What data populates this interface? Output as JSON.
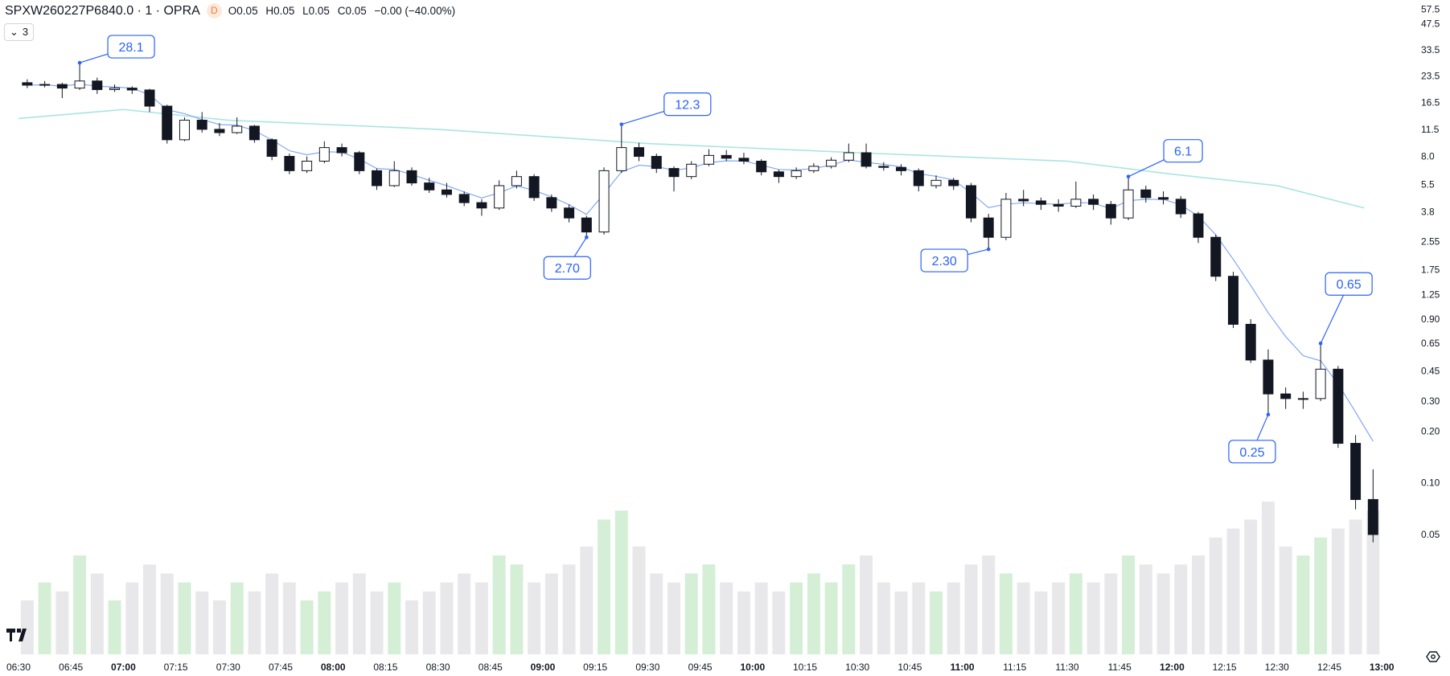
{
  "header": {
    "symbol": "SPXW260227P6840.0 · 1 · OPRA",
    "badge": "D",
    "open": "O0.05",
    "high": "H0.05",
    "low": "L0.05",
    "close": "C0.05",
    "change": "−0.00 (−40.00%)",
    "indicators_toggle": "3"
  },
  "colors": {
    "candle": "#131722",
    "ma_fast": "#7aa0f7",
    "ma_fast_above": "#f28b82",
    "ma_slow": "#a8e6df",
    "vol_up": "#d4efd6",
    "vol_down": "#e8e8ea",
    "annotation": "#2962ff",
    "axis_text": "#131722"
  },
  "chart_data": {
    "type": "candlestick",
    "interval_minutes": 5,
    "start_time": "06:30",
    "y_scale": "log",
    "ylim": [
      0.02,
      60
    ],
    "y_ticks": [
      "57.5",
      "47.5",
      "33.5",
      "23.5",
      "16.5",
      "11.5",
      "8.0",
      "5.5",
      "3.8",
      "2.55",
      "1.75",
      "1.25",
      "0.90",
      "0.65",
      "0.45",
      "0.30",
      "0.20",
      "0.10",
      "0.05"
    ],
    "x_ticks": [
      {
        "t": "06:30",
        "bold": false
      },
      {
        "t": "06:45",
        "bold": false
      },
      {
        "t": "07:00",
        "bold": true
      },
      {
        "t": "07:15",
        "bold": false
      },
      {
        "t": "07:30",
        "bold": false
      },
      {
        "t": "07:45",
        "bold": false
      },
      {
        "t": "08:00",
        "bold": true
      },
      {
        "t": "08:15",
        "bold": false
      },
      {
        "t": "08:30",
        "bold": false
      },
      {
        "t": "08:45",
        "bold": false
      },
      {
        "t": "09:00",
        "bold": true
      },
      {
        "t": "09:15",
        "bold": false
      },
      {
        "t": "09:30",
        "bold": false
      },
      {
        "t": "09:45",
        "bold": false
      },
      {
        "t": "10:00",
        "bold": true
      },
      {
        "t": "10:15",
        "bold": false
      },
      {
        "t": "10:30",
        "bold": false
      },
      {
        "t": "10:45",
        "bold": false
      },
      {
        "t": "11:00",
        "bold": true
      },
      {
        "t": "11:15",
        "bold": false
      },
      {
        "t": "11:30",
        "bold": false
      },
      {
        "t": "11:45",
        "bold": false
      },
      {
        "t": "12:00",
        "bold": true
      },
      {
        "t": "12:15",
        "bold": false
      },
      {
        "t": "12:30",
        "bold": false
      },
      {
        "t": "12:45",
        "bold": false
      },
      {
        "t": "13:00",
        "bold": true
      }
    ],
    "candles": [
      [
        21.5,
        22.5,
        20,
        20.8
      ],
      [
        20.8,
        22,
        20.2,
        21
      ],
      [
        21,
        21.5,
        17.5,
        20
      ],
      [
        20,
        28.1,
        19.5,
        22
      ],
      [
        22,
        23,
        18.5,
        19.6
      ],
      [
        19.6,
        21,
        19,
        20
      ],
      [
        20,
        20.5,
        18.5,
        19.5
      ],
      [
        19.5,
        19.8,
        14.5,
        15.7
      ],
      [
        15.7,
        16,
        9.5,
        10
      ],
      [
        10,
        13.5,
        9.8,
        13
      ],
      [
        13,
        14.5,
        11,
        11.5
      ],
      [
        11.5,
        12.5,
        10.5,
        11
      ],
      [
        11,
        13.5,
        10.8,
        12
      ],
      [
        12,
        12.2,
        9.6,
        10
      ],
      [
        10,
        10.2,
        7.6,
        8
      ],
      [
        8,
        8.3,
        6.3,
        6.6
      ],
      [
        6.6,
        8,
        6.4,
        7.5
      ],
      [
        7.5,
        9.8,
        7.3,
        9
      ],
      [
        9,
        9.5,
        8,
        8.4
      ],
      [
        8.4,
        8.6,
        6.3,
        6.6
      ],
      [
        6.6,
        6.8,
        5.1,
        5.4
      ],
      [
        5.4,
        7.5,
        5.3,
        6.6
      ],
      [
        6.6,
        6.9,
        5.4,
        5.6
      ],
      [
        5.6,
        6,
        4.9,
        5.1
      ],
      [
        5.1,
        5.6,
        4.6,
        4.8
      ],
      [
        4.8,
        5,
        4.1,
        4.3
      ],
      [
        4.3,
        4.5,
        3.6,
        4.0
      ],
      [
        4,
        5.8,
        3.9,
        5.4
      ],
      [
        5.4,
        6.6,
        5.2,
        6.1
      ],
      [
        6.1,
        6.3,
        4.4,
        4.6
      ],
      [
        4.6,
        4.8,
        3.8,
        4.0
      ],
      [
        4,
        4.2,
        3.3,
        3.5
      ],
      [
        3.5,
        3.6,
        2.7,
        2.9
      ],
      [
        2.9,
        6.9,
        2.8,
        6.6
      ],
      [
        6.6,
        12.3,
        6.4,
        9
      ],
      [
        9,
        9.6,
        7.5,
        8
      ],
      [
        8,
        8.3,
        6.4,
        6.8
      ],
      [
        6.8,
        7,
        5,
        6.1
      ],
      [
        6.1,
        7.5,
        5.9,
        7.2
      ],
      [
        7.2,
        8.8,
        7,
        8.1
      ],
      [
        8.1,
        8.7,
        7.5,
        7.8
      ],
      [
        7.8,
        8.4,
        7.2,
        7.5
      ],
      [
        7.5,
        7.7,
        6.2,
        6.5
      ],
      [
        6.5,
        6.7,
        5.6,
        6.1
      ],
      [
        6.1,
        6.9,
        5.9,
        6.6
      ],
      [
        6.6,
        7.3,
        6.4,
        7
      ],
      [
        7,
        7.9,
        6.8,
        7.6
      ],
      [
        7.6,
        9.5,
        7.4,
        8.4
      ],
      [
        8.4,
        9.5,
        6.8,
        7
      ],
      [
        7,
        7.4,
        6.6,
        6.9
      ],
      [
        6.9,
        7.2,
        6.2,
        6.6
      ],
      [
        6.6,
        6.8,
        5,
        5.4
      ],
      [
        5.4,
        6.2,
        5.2,
        5.8
      ],
      [
        5.8,
        6,
        5.1,
        5.4
      ],
      [
        5.4,
        5.6,
        3.3,
        3.5
      ],
      [
        3.5,
        3.7,
        2.3,
        2.7
      ],
      [
        2.7,
        4.9,
        2.6,
        4.5
      ],
      [
        4.5,
        5.1,
        4.1,
        4.4
      ],
      [
        4.4,
        4.6,
        3.9,
        4.2
      ],
      [
        4.2,
        4.5,
        3.8,
        4.1
      ],
      [
        4.1,
        5.7,
        4,
        4.5
      ],
      [
        4.5,
        4.8,
        3.9,
        4.2
      ],
      [
        4.2,
        4.4,
        3.2,
        3.5
      ],
      [
        3.5,
        6.1,
        3.4,
        5.1
      ],
      [
        5.1,
        5.4,
        4.3,
        4.6
      ],
      [
        4.6,
        5,
        4.2,
        4.5
      ],
      [
        4.5,
        4.7,
        3.5,
        3.7
      ],
      [
        3.7,
        3.8,
        2.5,
        2.7
      ],
      [
        2.7,
        2.8,
        1.5,
        1.6
      ],
      [
        1.6,
        1.7,
        0.8,
        0.84
      ],
      [
        0.84,
        0.9,
        0.5,
        0.52
      ],
      [
        0.52,
        0.6,
        0.25,
        0.33
      ],
      [
        0.33,
        0.36,
        0.27,
        0.31
      ],
      [
        0.31,
        0.34,
        0.27,
        0.31
      ],
      [
        0.31,
        0.65,
        0.3,
        0.46
      ],
      [
        0.46,
        0.48,
        0.16,
        0.17
      ],
      [
        0.17,
        0.19,
        0.07,
        0.08
      ],
      [
        0.08,
        0.12,
        0.045,
        0.05
      ]
    ],
    "volume": [
      30,
      40,
      35,
      55,
      45,
      30,
      40,
      50,
      45,
      40,
      35,
      30,
      40,
      35,
      45,
      40,
      30,
      35,
      40,
      45,
      35,
      40,
      30,
      35,
      40,
      45,
      40,
      55,
      50,
      40,
      45,
      50,
      60,
      75,
      80,
      60,
      45,
      40,
      45,
      50,
      40,
      35,
      40,
      35,
      40,
      45,
      40,
      50,
      55,
      40,
      35,
      40,
      35,
      40,
      50,
      55,
      45,
      40,
      35,
      40,
      45,
      40,
      45,
      55,
      50,
      45,
      50,
      55,
      65,
      70,
      75,
      85,
      60,
      55,
      65,
      70,
      75,
      80
    ],
    "ma_slow": {
      "times": [
        "06:30",
        "07:00",
        "07:30",
        "08:30",
        "09:30",
        "10:30",
        "11:30",
        "12:00",
        "12:30",
        "12:55"
      ],
      "values": [
        13.3,
        15,
        13,
        11.5,
        9.5,
        8.4,
        7.5,
        6.3,
        5.4,
        4.0
      ]
    },
    "annotations": [
      {
        "label": "28.1",
        "candle": 3,
        "at": "high"
      },
      {
        "label": "2.70",
        "candle": 32,
        "at": "low"
      },
      {
        "label": "12.3",
        "candle": 34,
        "at": "high"
      },
      {
        "label": "2.30",
        "candle": 55,
        "at": "low"
      },
      {
        "label": "6.1",
        "candle": 63,
        "at": "high"
      },
      {
        "label": "0.25",
        "candle": 71,
        "at": "low"
      },
      {
        "label": "0.65",
        "candle": 74,
        "at": "high"
      }
    ]
  }
}
